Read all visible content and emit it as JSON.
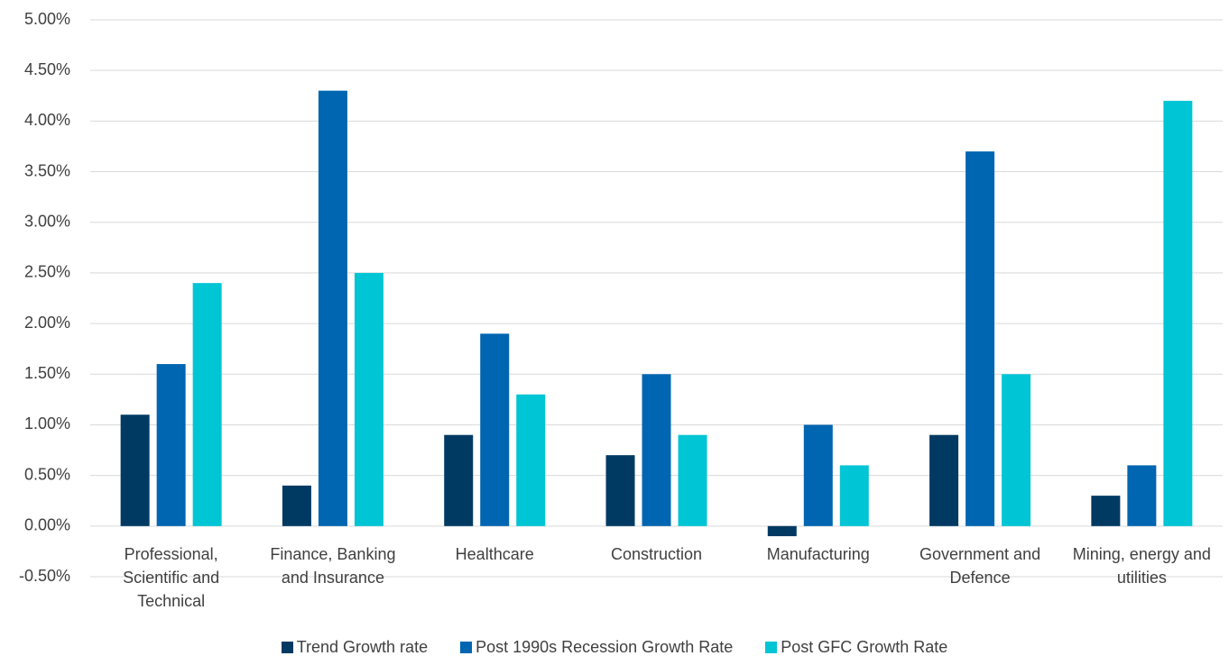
{
  "chart_data": {
    "type": "bar",
    "categories": [
      "Professional, Scientific and Technical",
      "Finance, Banking and Insurance",
      "Healthcare",
      "Construction",
      "Manufacturing",
      "Government and Defence",
      "Mining, energy and utilities"
    ],
    "series": [
      {
        "name": "Trend Growth rate",
        "color": "#003a63",
        "values": [
          1.1,
          0.4,
          0.9,
          0.7,
          -0.1,
          0.9,
          0.3
        ]
      },
      {
        "name": "Post 1990s Recession Growth Rate",
        "color": "#0066b1",
        "values": [
          1.6,
          4.3,
          1.9,
          1.5,
          1.0,
          3.7,
          0.6
        ]
      },
      {
        "name": "Post GFC Growth Rate",
        "color": "#00c5d5",
        "values": [
          2.4,
          2.5,
          1.3,
          0.9,
          0.6,
          1.5,
          4.2
        ]
      }
    ],
    "ylim": [
      -0.5,
      5
    ],
    "yticks": [
      {
        "value": -0.5,
        "label": "-0.50%"
      },
      {
        "value": 0,
        "label": "0.00%"
      },
      {
        "value": 0.5,
        "label": "0.50%"
      },
      {
        "value": 1,
        "label": "1.00%"
      },
      {
        "value": 1.5,
        "label": "1.50%"
      },
      {
        "value": 2,
        "label": "2.00%"
      },
      {
        "value": 2.5,
        "label": "2.50%"
      },
      {
        "value": 3,
        "label": "3.00%"
      },
      {
        "value": 3.5,
        "label": "3.50%"
      },
      {
        "value": 4,
        "label": "4.00%"
      },
      {
        "value": 4.5,
        "label": "4.50%"
      },
      {
        "value": 5,
        "label": "5.00%"
      }
    ],
    "grid": true
  }
}
